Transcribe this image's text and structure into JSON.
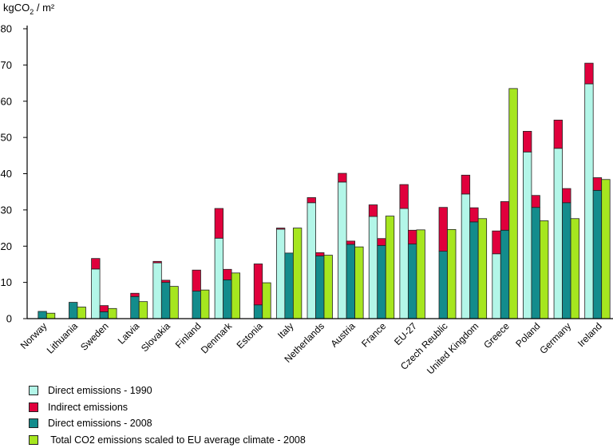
{
  "chart_data": {
    "type": "bar",
    "ylabel_main": "kgCO",
    "ylabel_sub": "2",
    "ylabel_tail": " / m²",
    "ylim": [
      0,
      80
    ],
    "yticks": [
      "0",
      "10",
      "20",
      "30",
      "40",
      "50",
      "60",
      "70",
      "80"
    ],
    "categories": [
      "Norway",
      "Lithuania",
      "Sweden",
      "Latvia",
      "Slovakia",
      "Finland",
      "Denmark",
      "Estonia",
      "Italy",
      "Netherlands",
      "Austria",
      "France",
      "EU-27",
      "Czech Reublic",
      "United Kingdom",
      "Greece",
      "Poland",
      "Germany",
      "Ireland"
    ],
    "series": [
      {
        "name": "Direct emissions - 1990",
        "color": "#b3f6e8",
        "values": [
          0,
          0,
          13.7,
          0,
          15.4,
          0,
          22.2,
          0,
          24.7,
          32,
          37.7,
          28.2,
          30.4,
          0,
          34.4,
          17.9,
          46,
          47,
          64.8
        ]
      },
      {
        "name": "Indirect emissions",
        "color": "#e0003c",
        "values": [
          0,
          0,
          2.9,
          0,
          0.4,
          0,
          8.2,
          0,
          0.3,
          1.4,
          2.4,
          3.2,
          6.6,
          0,
          5.2,
          6.3,
          5.7,
          7.8,
          5.7
        ]
      },
      {
        "name": "Direct emissions - 2008",
        "color": "#138c8c",
        "values": [
          2.0,
          4.5,
          1.9,
          6.1,
          10.0,
          7.6,
          10.7,
          3.8,
          18.1,
          17.3,
          20.5,
          20.2,
          20.6,
          18.6,
          26.7,
          24.4,
          30.7,
          32.0,
          35.4
        ]
      },
      {
        "name": "Indirect emissions",
        "color": "#e0003c",
        "values": [
          0,
          0,
          1.7,
          0.9,
          0.6,
          5.8,
          2.9,
          11.3,
          0,
          0.9,
          0.9,
          1.9,
          3.8,
          12.1,
          3.9,
          7.9,
          3.3,
          3.9,
          3.5
        ]
      },
      {
        "name": "Total CO2 emissions scaled to EU average climate - 2008",
        "color": "#a6e61f",
        "values": [
          1.5,
          3.2,
          2.8,
          4.7,
          8.9,
          7.9,
          12.6,
          9.9,
          25,
          17.5,
          19.8,
          28.3,
          24.5,
          24.6,
          27.6,
          63.5,
          27.0,
          27.6,
          38.4
        ]
      }
    ],
    "legend": [
      {
        "label": "Direct emissions - 1990",
        "color": "#b3f6e8"
      },
      {
        "label": "Indirect emissions",
        "color": "#e0003c"
      },
      {
        "label": "Direct emissions - 2008",
        "color": "#138c8c"
      },
      {
        "label": " Total CO2 emissions scaled to EU average climate - 2008",
        "color": "#a6e61f"
      }
    ],
    "legend_position": "bottom-left",
    "grid": false
  }
}
